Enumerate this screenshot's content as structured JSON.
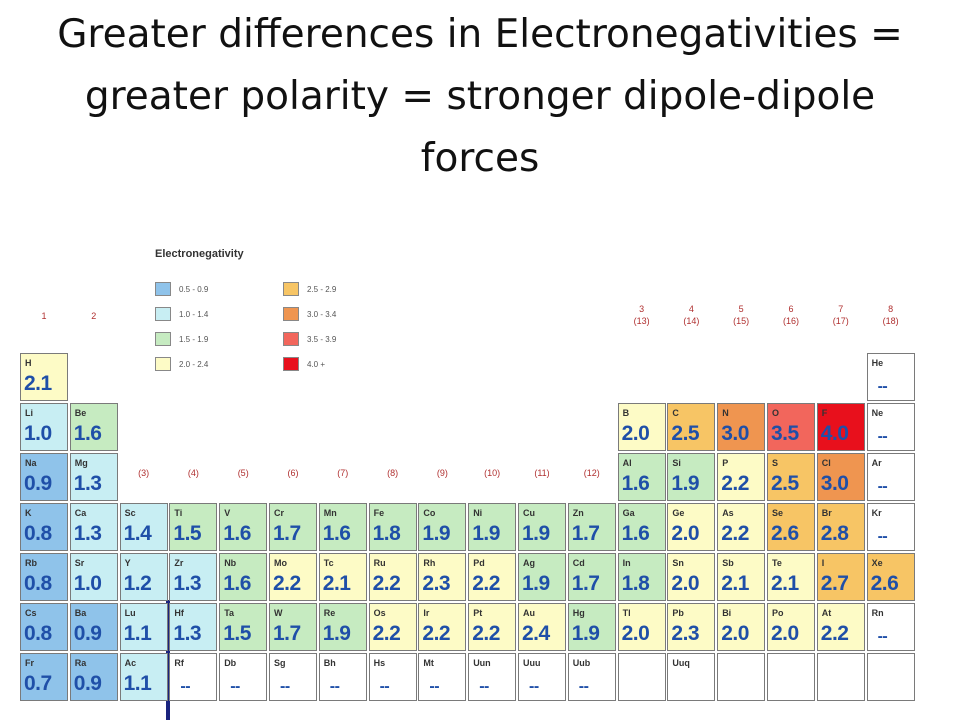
{
  "title": {
    "line1": "Greater differences in Electronegativities =",
    "line2": "greater polarity = stronger dipole-dipole",
    "line3": "forces"
  },
  "legend": {
    "title": "Electronegativity",
    "items": [
      {
        "label": "0.5 - 0.9",
        "color": "#8fc3ea"
      },
      {
        "label": "1.0 - 1.4",
        "color": "#c8eef3"
      },
      {
        "label": "1.5 - 1.9",
        "color": "#c6ebc1"
      },
      {
        "label": "2.0 - 2.4",
        "color": "#fdfbc6"
      },
      {
        "label": "2.5 - 2.9",
        "color": "#f7c565"
      },
      {
        "label": "3.0 - 3.4",
        "color": "#ef9550"
      },
      {
        "label": "3.5 - 3.9",
        "color": "#f2665c"
      },
      {
        "label": "4.0 +",
        "color": "#e8101c"
      }
    ]
  },
  "group_labels": [
    {
      "text": "1",
      "col": 0,
      "row": -1
    },
    {
      "text": "2",
      "col": 1,
      "row": -1
    },
    {
      "text": "(3)",
      "col": 2,
      "row": 2
    },
    {
      "text": "(4)",
      "col": 3,
      "row": 2
    },
    {
      "text": "(5)",
      "col": 4,
      "row": 2
    },
    {
      "text": "(6)",
      "col": 5,
      "row": 2
    },
    {
      "text": "(7)",
      "col": 6,
      "row": 2
    },
    {
      "text": "(8)",
      "col": 7,
      "row": 2
    },
    {
      "text": "(9)",
      "col": 8,
      "row": 2
    },
    {
      "text": "(10)",
      "col": 9,
      "row": 2
    },
    {
      "text": "(11)",
      "col": 10,
      "row": 2
    },
    {
      "text": "(12)",
      "col": 11,
      "row": 2
    },
    {
      "text": "3\n(13)",
      "col": 12,
      "row": -1
    },
    {
      "text": "4\n(14)",
      "col": 13,
      "row": -1
    },
    {
      "text": "5\n(15)",
      "col": 14,
      "row": -1
    },
    {
      "text": "6\n(16)",
      "col": 15,
      "row": -1
    },
    {
      "text": "7\n(17)",
      "col": 16,
      "row": -1
    },
    {
      "text": "8\n(18)",
      "col": 17,
      "row": -1
    }
  ],
  "elements": [
    {
      "sym": "H",
      "val": "2.1",
      "col": 0,
      "row": 0,
      "color": "#fdfbc6"
    },
    {
      "sym": "He",
      "val": "--",
      "col": 17,
      "row": 0,
      "color": "#ffffff"
    },
    {
      "sym": "Li",
      "val": "1.0",
      "col": 0,
      "row": 1,
      "color": "#c8eef3"
    },
    {
      "sym": "Be",
      "val": "1.6",
      "col": 1,
      "row": 1,
      "color": "#c6ebc1"
    },
    {
      "sym": "B",
      "val": "2.0",
      "col": 12,
      "row": 1,
      "color": "#fdfbc6"
    },
    {
      "sym": "C",
      "val": "2.5",
      "col": 13,
      "row": 1,
      "color": "#f7c565"
    },
    {
      "sym": "N",
      "val": "3.0",
      "col": 14,
      "row": 1,
      "color": "#ef9550"
    },
    {
      "sym": "O",
      "val": "3.5",
      "col": 15,
      "row": 1,
      "color": "#f2665c"
    },
    {
      "sym": "F",
      "val": "4.0",
      "col": 16,
      "row": 1,
      "color": "#e8101c"
    },
    {
      "sym": "Ne",
      "val": "--",
      "col": 17,
      "row": 1,
      "color": "#ffffff"
    },
    {
      "sym": "Na",
      "val": "0.9",
      "col": 0,
      "row": 2,
      "color": "#8fc3ea"
    },
    {
      "sym": "Mg",
      "val": "1.3",
      "col": 1,
      "row": 2,
      "color": "#c8eef3"
    },
    {
      "sym": "Al",
      "val": "1.6",
      "col": 12,
      "row": 2,
      "color": "#c6ebc1"
    },
    {
      "sym": "Si",
      "val": "1.9",
      "col": 13,
      "row": 2,
      "color": "#c6ebc1"
    },
    {
      "sym": "P",
      "val": "2.2",
      "col": 14,
      "row": 2,
      "color": "#fdfbc6"
    },
    {
      "sym": "S",
      "val": "2.5",
      "col": 15,
      "row": 2,
      "color": "#f7c565"
    },
    {
      "sym": "Cl",
      "val": "3.0",
      "col": 16,
      "row": 2,
      "color": "#ef9550"
    },
    {
      "sym": "Ar",
      "val": "--",
      "col": 17,
      "row": 2,
      "color": "#ffffff"
    },
    {
      "sym": "K",
      "val": "0.8",
      "col": 0,
      "row": 3,
      "color": "#8fc3ea"
    },
    {
      "sym": "Ca",
      "val": "1.3",
      "col": 1,
      "row": 3,
      "color": "#c8eef3"
    },
    {
      "sym": "Sc",
      "val": "1.4",
      "col": 2,
      "row": 3,
      "color": "#c8eef3"
    },
    {
      "sym": "Ti",
      "val": "1.5",
      "col": 3,
      "row": 3,
      "color": "#c6ebc1"
    },
    {
      "sym": "V",
      "val": "1.6",
      "col": 4,
      "row": 3,
      "color": "#c6ebc1"
    },
    {
      "sym": "Cr",
      "val": "1.7",
      "col": 5,
      "row": 3,
      "color": "#c6ebc1"
    },
    {
      "sym": "Mn",
      "val": "1.6",
      "col": 6,
      "row": 3,
      "color": "#c6ebc1"
    },
    {
      "sym": "Fe",
      "val": "1.8",
      "col": 7,
      "row": 3,
      "color": "#c6ebc1"
    },
    {
      "sym": "Co",
      "val": "1.9",
      "col": 8,
      "row": 3,
      "color": "#c6ebc1"
    },
    {
      "sym": "Ni",
      "val": "1.9",
      "col": 9,
      "row": 3,
      "color": "#c6ebc1"
    },
    {
      "sym": "Cu",
      "val": "1.9",
      "col": 10,
      "row": 3,
      "color": "#c6ebc1"
    },
    {
      "sym": "Zn",
      "val": "1.7",
      "col": 11,
      "row": 3,
      "color": "#c6ebc1"
    },
    {
      "sym": "Ga",
      "val": "1.6",
      "col": 12,
      "row": 3,
      "color": "#c6ebc1"
    },
    {
      "sym": "Ge",
      "val": "2.0",
      "col": 13,
      "row": 3,
      "color": "#fdfbc6"
    },
    {
      "sym": "As",
      "val": "2.2",
      "col": 14,
      "row": 3,
      "color": "#fdfbc6"
    },
    {
      "sym": "Se",
      "val": "2.6",
      "col": 15,
      "row": 3,
      "color": "#f7c565"
    },
    {
      "sym": "Br",
      "val": "2.8",
      "col": 16,
      "row": 3,
      "color": "#f7c565"
    },
    {
      "sym": "Kr",
      "val": "--",
      "col": 17,
      "row": 3,
      "color": "#ffffff"
    },
    {
      "sym": "Rb",
      "val": "0.8",
      "col": 0,
      "row": 4,
      "color": "#8fc3ea"
    },
    {
      "sym": "Sr",
      "val": "1.0",
      "col": 1,
      "row": 4,
      "color": "#c8eef3"
    },
    {
      "sym": "Y",
      "val": "1.2",
      "col": 2,
      "row": 4,
      "color": "#c8eef3"
    },
    {
      "sym": "Zr",
      "val": "1.3",
      "col": 3,
      "row": 4,
      "color": "#c8eef3"
    },
    {
      "sym": "Nb",
      "val": "1.6",
      "col": 4,
      "row": 4,
      "color": "#c6ebc1"
    },
    {
      "sym": "Mo",
      "val": "2.2",
      "col": 5,
      "row": 4,
      "color": "#fdfbc6"
    },
    {
      "sym": "Tc",
      "val": "2.1",
      "col": 6,
      "row": 4,
      "color": "#fdfbc6"
    },
    {
      "sym": "Ru",
      "val": "2.2",
      "col": 7,
      "row": 4,
      "color": "#fdfbc6"
    },
    {
      "sym": "Rh",
      "val": "2.3",
      "col": 8,
      "row": 4,
      "color": "#fdfbc6"
    },
    {
      "sym": "Pd",
      "val": "2.2",
      "col": 9,
      "row": 4,
      "color": "#fdfbc6"
    },
    {
      "sym": "Ag",
      "val": "1.9",
      "col": 10,
      "row": 4,
      "color": "#c6ebc1"
    },
    {
      "sym": "Cd",
      "val": "1.7",
      "col": 11,
      "row": 4,
      "color": "#c6ebc1"
    },
    {
      "sym": "In",
      "val": "1.8",
      "col": 12,
      "row": 4,
      "color": "#c6ebc1"
    },
    {
      "sym": "Sn",
      "val": "2.0",
      "col": 13,
      "row": 4,
      "color": "#fdfbc6"
    },
    {
      "sym": "Sb",
      "val": "2.1",
      "col": 14,
      "row": 4,
      "color": "#fdfbc6"
    },
    {
      "sym": "Te",
      "val": "2.1",
      "col": 15,
      "row": 4,
      "color": "#fdfbc6"
    },
    {
      "sym": "I",
      "val": "2.7",
      "col": 16,
      "row": 4,
      "color": "#f7c565"
    },
    {
      "sym": "Xe",
      "val": "2.6",
      "col": 17,
      "row": 4,
      "color": "#f7c565"
    },
    {
      "sym": "Cs",
      "val": "0.8",
      "col": 0,
      "row": 5,
      "color": "#8fc3ea"
    },
    {
      "sym": "Ba",
      "val": "0.9",
      "col": 1,
      "row": 5,
      "color": "#8fc3ea"
    },
    {
      "sym": "Lu",
      "val": "1.1",
      "col": 2,
      "row": 5,
      "color": "#c8eef3"
    },
    {
      "sym": "Hf",
      "val": "1.3",
      "col": 3,
      "row": 5,
      "color": "#c8eef3"
    },
    {
      "sym": "Ta",
      "val": "1.5",
      "col": 4,
      "row": 5,
      "color": "#c6ebc1"
    },
    {
      "sym": "W",
      "val": "1.7",
      "col": 5,
      "row": 5,
      "color": "#c6ebc1"
    },
    {
      "sym": "Re",
      "val": "1.9",
      "col": 6,
      "row": 5,
      "color": "#c6ebc1"
    },
    {
      "sym": "Os",
      "val": "2.2",
      "col": 7,
      "row": 5,
      "color": "#fdfbc6"
    },
    {
      "sym": "Ir",
      "val": "2.2",
      "col": 8,
      "row": 5,
      "color": "#fdfbc6"
    },
    {
      "sym": "Pt",
      "val": "2.2",
      "col": 9,
      "row": 5,
      "color": "#fdfbc6"
    },
    {
      "sym": "Au",
      "val": "2.4",
      "col": 10,
      "row": 5,
      "color": "#fdfbc6"
    },
    {
      "sym": "Hg",
      "val": "1.9",
      "col": 11,
      "row": 5,
      "color": "#c6ebc1"
    },
    {
      "sym": "Tl",
      "val": "2.0",
      "col": 12,
      "row": 5,
      "color": "#fdfbc6"
    },
    {
      "sym": "Pb",
      "val": "2.3",
      "col": 13,
      "row": 5,
      "color": "#fdfbc6"
    },
    {
      "sym": "Bi",
      "val": "2.0",
      "col": 14,
      "row": 5,
      "color": "#fdfbc6"
    },
    {
      "sym": "Po",
      "val": "2.0",
      "col": 15,
      "row": 5,
      "color": "#fdfbc6"
    },
    {
      "sym": "At",
      "val": "2.2",
      "col": 16,
      "row": 5,
      "color": "#fdfbc6"
    },
    {
      "sym": "Rn",
      "val": "--",
      "col": 17,
      "row": 5,
      "color": "#ffffff"
    },
    {
      "sym": "Fr",
      "val": "0.7",
      "col": 0,
      "row": 6,
      "color": "#8fc3ea"
    },
    {
      "sym": "Ra",
      "val": "0.9",
      "col": 1,
      "row": 6,
      "color": "#8fc3ea"
    },
    {
      "sym": "Ac",
      "val": "1.1",
      "col": 2,
      "row": 6,
      "color": "#c8eef3"
    },
    {
      "sym": "Rf",
      "val": "--",
      "col": 3,
      "row": 6,
      "color": "#ffffff"
    },
    {
      "sym": "Db",
      "val": "--",
      "col": 4,
      "row": 6,
      "color": "#ffffff"
    },
    {
      "sym": "Sg",
      "val": "--",
      "col": 5,
      "row": 6,
      "color": "#ffffff"
    },
    {
      "sym": "Bh",
      "val": "--",
      "col": 6,
      "row": 6,
      "color": "#ffffff"
    },
    {
      "sym": "Hs",
      "val": "--",
      "col": 7,
      "row": 6,
      "color": "#ffffff"
    },
    {
      "sym": "Mt",
      "val": "--",
      "col": 8,
      "row": 6,
      "color": "#ffffff"
    },
    {
      "sym": "Uun",
      "val": "--",
      "col": 9,
      "row": 6,
      "color": "#ffffff"
    },
    {
      "sym": "Uuu",
      "val": "--",
      "col": 10,
      "row": 6,
      "color": "#ffffff"
    },
    {
      "sym": "Uub",
      "val": "--",
      "col": 11,
      "row": 6,
      "color": "#ffffff"
    },
    {
      "sym": "",
      "val": "",
      "col": 12,
      "row": 6,
      "color": "#ffffff"
    },
    {
      "sym": "Uuq",
      "val": "",
      "col": 13,
      "row": 6,
      "color": "#ffffff"
    },
    {
      "sym": "",
      "val": "",
      "col": 14,
      "row": 6,
      "color": "#ffffff"
    },
    {
      "sym": "",
      "val": "",
      "col": 15,
      "row": 6,
      "color": "#ffffff"
    },
    {
      "sym": "",
      "val": "",
      "col": 16,
      "row": 6,
      "color": "#ffffff"
    },
    {
      "sym": "",
      "val": "",
      "col": 17,
      "row": 6,
      "color": "#ffffff"
    }
  ]
}
